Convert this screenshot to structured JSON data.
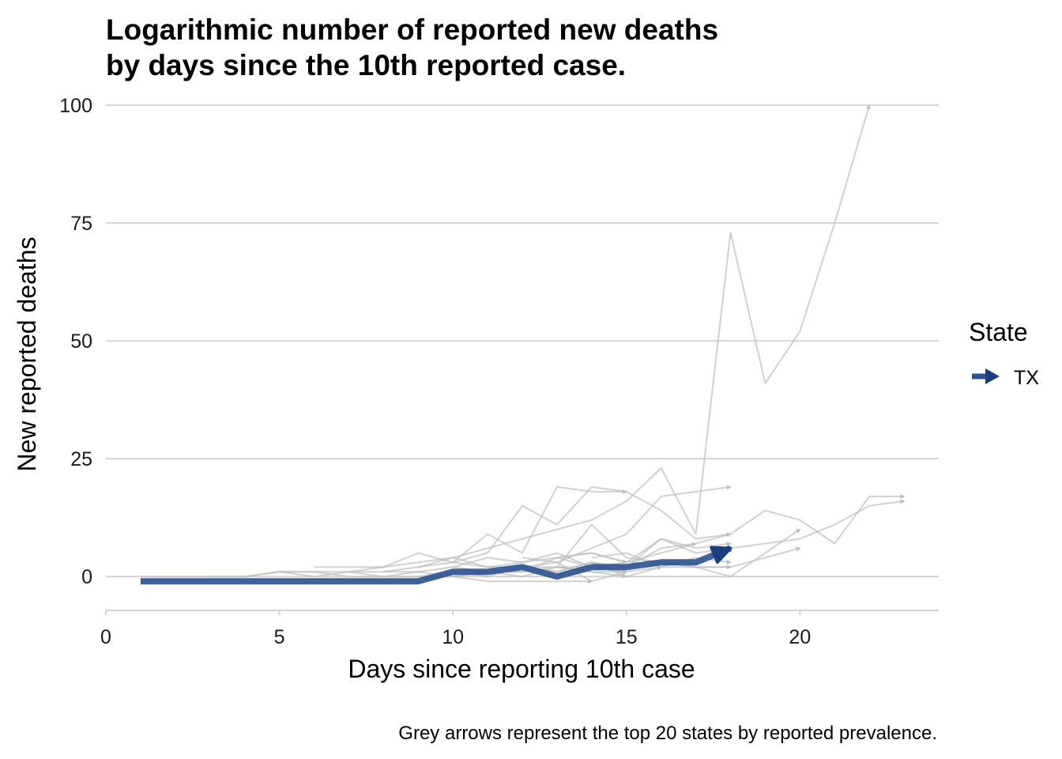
{
  "chart_data": {
    "type": "line",
    "title_lines": [
      "Logarithmic number of reported new deaths",
      "by days since the 10th reported case."
    ],
    "xlabel": "Days since reporting 10th case",
    "ylabel": "New reported deaths",
    "caption": "Grey arrows represent the top 20 states by reported prevalence.",
    "xlim": [
      0,
      24
    ],
    "ylim": [
      -5.5,
      100
    ],
    "x_ticks": [
      0,
      5,
      10,
      15,
      20
    ],
    "x_tick_labels": [
      "0",
      "5",
      "10",
      "15",
      "20"
    ],
    "y_ticks": [
      0,
      25,
      50,
      75,
      100
    ],
    "y_tick_labels": [
      "0",
      "25",
      "50",
      "75",
      "100"
    ],
    "grid": "horizontal",
    "legend": {
      "title": "State",
      "placement": "right",
      "entries": [
        {
          "label": "TX",
          "color": "#2f5591"
        }
      ]
    },
    "colors": {
      "highlight": "#2f5591",
      "highlight_arrow": "#1b3f80",
      "background_series": "#bdbdbd",
      "grid": "#d4d4d4"
    },
    "series": [
      {
        "name": "TX",
        "highlight": true,
        "x": [
          1,
          2,
          3,
          4,
          5,
          6,
          7,
          8,
          9,
          10,
          11,
          12,
          13,
          14,
          15,
          16,
          17,
          18
        ],
        "y": [
          -1,
          -1,
          -1,
          -1,
          -1,
          -1,
          -1,
          -1,
          -1,
          1,
          1,
          2,
          0,
          2,
          2,
          3,
          3,
          6
        ]
      },
      {
        "background": true,
        "x": [
          1,
          2,
          3,
          4,
          5,
          6,
          7,
          8,
          9,
          10,
          11,
          12,
          13,
          14,
          15,
          16,
          17,
          18,
          19,
          20,
          21,
          22
        ],
        "y": [
          0,
          0,
          0,
          0,
          1,
          1,
          1,
          2,
          3,
          4,
          6,
          8,
          10,
          12,
          16,
          23,
          9,
          73,
          41,
          52,
          75,
          100
        ]
      },
      {
        "background": true,
        "x": [
          9,
          10,
          11,
          12,
          13,
          14,
          15,
          16,
          17,
          18
        ],
        "y": [
          2,
          3,
          5,
          15,
          11,
          19,
          18,
          14,
          8,
          9
        ]
      },
      {
        "background": true,
        "x": [
          10,
          11,
          12,
          13,
          14,
          15
        ],
        "y": [
          3,
          9,
          5,
          19,
          18,
          18
        ]
      },
      {
        "background": true,
        "x": [
          12,
          13,
          14,
          15,
          16,
          17,
          18
        ],
        "y": [
          4,
          3,
          6,
          9,
          17,
          18,
          19
        ]
      },
      {
        "background": true,
        "x": [
          14,
          15,
          16,
          17,
          18,
          19,
          20,
          21,
          22,
          23
        ],
        "y": [
          3,
          2,
          8,
          5,
          6,
          7,
          8,
          11,
          15,
          16
        ]
      },
      {
        "background": true,
        "x": [
          15,
          16,
          17,
          18,
          19,
          20,
          21,
          22,
          23
        ],
        "y": [
          2,
          6,
          7,
          9,
          14,
          12,
          7,
          17,
          17
        ]
      },
      {
        "background": true,
        "x": [
          13,
          14,
          15,
          16,
          17,
          18,
          19,
          20
        ],
        "y": [
          2,
          11,
          4,
          3,
          2,
          0,
          5,
          10
        ]
      },
      {
        "background": true,
        "x": [
          14,
          15,
          16,
          17,
          18,
          19,
          20
        ],
        "y": [
          2,
          2,
          3,
          2,
          2,
          4,
          6
        ]
      },
      {
        "background": true,
        "x": [
          10,
          11,
          12,
          13,
          14,
          15,
          16,
          17
        ],
        "y": [
          2,
          4,
          3,
          5,
          2,
          3,
          5,
          7
        ]
      },
      {
        "background": true,
        "x": [
          6,
          7,
          8,
          9,
          10,
          11,
          12,
          13,
          14,
          15,
          16
        ],
        "y": [
          2,
          2,
          2,
          5,
          3,
          2,
          2,
          1,
          3,
          0,
          2
        ]
      },
      {
        "background": true,
        "x": [
          7,
          8,
          9,
          10,
          11,
          12,
          13,
          14,
          15
        ],
        "y": [
          1,
          1,
          2,
          4,
          2,
          3,
          4,
          2,
          1
        ]
      },
      {
        "background": true,
        "x": [
          11,
          12,
          13,
          14,
          15
        ],
        "y": [
          1,
          1,
          4,
          5,
          3
        ]
      },
      {
        "background": true,
        "x": [
          5,
          6,
          7,
          8,
          9,
          10,
          11,
          12,
          13,
          14,
          15
        ],
        "y": [
          1,
          0,
          1,
          0,
          1,
          2,
          1,
          0,
          2,
          1,
          0
        ]
      },
      {
        "background": true,
        "x": [
          9,
          10,
          11,
          12,
          13,
          14,
          15
        ],
        "y": [
          0,
          1,
          0,
          2,
          3,
          -1,
          1
        ]
      },
      {
        "background": true,
        "x": [
          3,
          4,
          5,
          6,
          7,
          8,
          9,
          10,
          11,
          12,
          13,
          14
        ],
        "y": [
          0,
          0,
          1,
          1,
          0,
          0,
          0,
          0,
          -1,
          -1,
          -1,
          -1
        ]
      },
      {
        "background": true,
        "x": [
          13,
          14,
          15,
          16,
          17,
          18
        ],
        "y": [
          4,
          5,
          3,
          8,
          6,
          7
        ]
      },
      {
        "background": true,
        "x": [
          14,
          15,
          16,
          17,
          18
        ],
        "y": [
          4,
          5,
          2,
          4,
          3
        ]
      },
      {
        "background": true,
        "x": [
          12,
          13,
          14,
          15,
          16,
          17,
          18
        ],
        "y": [
          2,
          1,
          3,
          1,
          2,
          2,
          2
        ]
      },
      {
        "background": true,
        "x": [
          10,
          11,
          12,
          13,
          14,
          15
        ],
        "y": [
          0,
          1,
          1,
          2,
          2,
          1
        ]
      },
      {
        "background": true,
        "x": [
          8,
          9,
          10,
          11,
          12,
          13,
          14,
          15
        ],
        "y": [
          1,
          1,
          0,
          1,
          2,
          2,
          1,
          1
        ]
      }
    ]
  }
}
